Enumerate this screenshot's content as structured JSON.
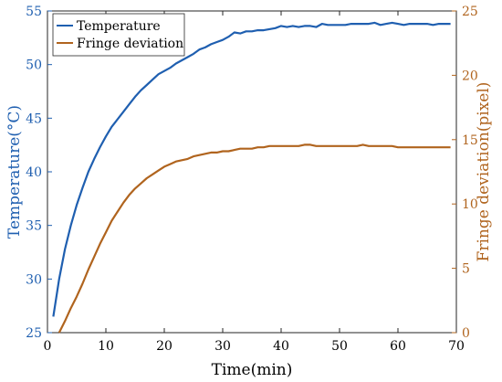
{
  "chart_data": {
    "type": "line",
    "xlabel": "Time(min)",
    "xlim": [
      0,
      70
    ],
    "x_ticks": [
      0,
      10,
      20,
      30,
      40,
      50,
      60,
      70
    ],
    "y_left": {
      "label": "Temperature(°C)",
      "lim": [
        25,
        55
      ],
      "ticks": [
        25,
        30,
        35,
        40,
        45,
        50,
        55
      ],
      "color": "#1f5fb0"
    },
    "y_right": {
      "label": "Fringe deviation(pixel)",
      "lim": [
        0,
        25
      ],
      "ticks": [
        0,
        5,
        10,
        15,
        20,
        25
      ],
      "color": "#b0641e"
    },
    "legend": {
      "location": "top-left"
    },
    "series": [
      {
        "name": "Temperature",
        "axis": "left",
        "color": "#1f5fb0",
        "x": [
          1,
          2,
          3,
          4,
          5,
          6,
          7,
          8,
          9,
          10,
          11,
          12,
          13,
          14,
          15,
          16,
          17,
          18,
          19,
          20,
          21,
          22,
          23,
          24,
          25,
          26,
          27,
          28,
          29,
          30,
          31,
          32,
          33,
          34,
          35,
          36,
          37,
          38,
          39,
          40,
          41,
          42,
          43,
          44,
          45,
          46,
          47,
          48,
          49,
          50,
          51,
          52,
          53,
          54,
          55,
          56,
          57,
          58,
          59,
          60,
          61,
          62,
          63,
          64,
          65,
          66,
          67,
          68,
          69
        ],
        "values": [
          26.5,
          30.0,
          32.8,
          35.0,
          36.9,
          38.5,
          40.0,
          41.2,
          42.3,
          43.3,
          44.2,
          44.9,
          45.6,
          46.3,
          47.0,
          47.6,
          48.1,
          48.6,
          49.1,
          49.4,
          49.7,
          50.1,
          50.4,
          50.7,
          51.0,
          51.4,
          51.6,
          51.9,
          52.1,
          52.3,
          52.6,
          53.0,
          52.9,
          53.1,
          53.1,
          53.2,
          53.2,
          53.3,
          53.4,
          53.6,
          53.5,
          53.6,
          53.5,
          53.6,
          53.6,
          53.5,
          53.8,
          53.7,
          53.7,
          53.7,
          53.7,
          53.8,
          53.8,
          53.8,
          53.8,
          53.9,
          53.7,
          53.8,
          53.9,
          53.8,
          53.7,
          53.8,
          53.8,
          53.8,
          53.8,
          53.7,
          53.8,
          53.8,
          53.8
        ]
      },
      {
        "name": "Fringe deviation",
        "axis": "right",
        "color": "#b0641e",
        "x": [
          2,
          3,
          4,
          5,
          6,
          7,
          8,
          9,
          10,
          11,
          12,
          13,
          14,
          15,
          16,
          17,
          18,
          19,
          20,
          21,
          22,
          23,
          24,
          25,
          26,
          27,
          28,
          29,
          30,
          31,
          32,
          33,
          34,
          35,
          36,
          37,
          38,
          39,
          40,
          41,
          42,
          43,
          44,
          45,
          46,
          47,
          48,
          49,
          50,
          51,
          52,
          53,
          54,
          55,
          56,
          57,
          58,
          59,
          60,
          61,
          62,
          63,
          64,
          65,
          66,
          67,
          68,
          69
        ],
        "values": [
          0.0,
          0.9,
          1.9,
          2.8,
          3.8,
          4.9,
          5.9,
          6.9,
          7.8,
          8.7,
          9.4,
          10.1,
          10.7,
          11.2,
          11.6,
          12.0,
          12.3,
          12.6,
          12.9,
          13.1,
          13.3,
          13.4,
          13.5,
          13.7,
          13.8,
          13.9,
          14.0,
          14.0,
          14.1,
          14.1,
          14.2,
          14.3,
          14.3,
          14.3,
          14.4,
          14.4,
          14.5,
          14.5,
          14.5,
          14.5,
          14.5,
          14.5,
          14.6,
          14.6,
          14.5,
          14.5,
          14.5,
          14.5,
          14.5,
          14.5,
          14.5,
          14.5,
          14.6,
          14.5,
          14.5,
          14.5,
          14.5,
          14.5,
          14.4,
          14.4,
          14.4,
          14.4,
          14.4,
          14.4,
          14.4,
          14.4,
          14.4,
          14.4
        ]
      }
    ]
  }
}
